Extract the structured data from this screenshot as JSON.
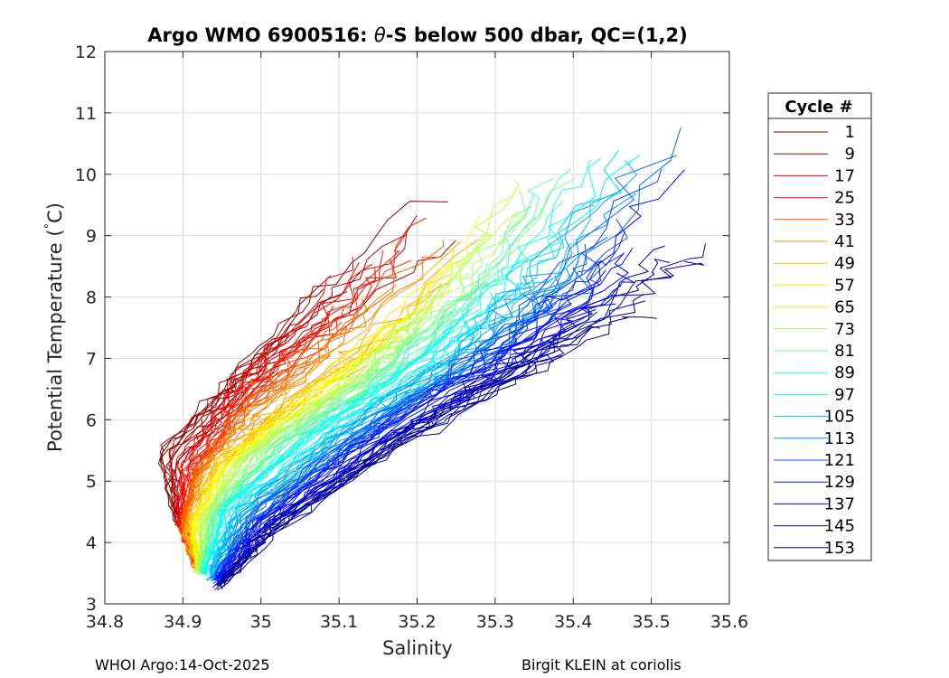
{
  "chart_data": {
    "type": "line",
    "title": {
      "prefix": "Argo WMO 6900516: ",
      "symbol": "θ",
      "suffix": "-S below 500 dbar,  QC=(1,2)"
    },
    "xlabel": "Salinity",
    "ylabel": {
      "text": "Potential Temperature (",
      "degree": "°",
      "unit": "C)"
    },
    "xlim": [
      34.8,
      35.6
    ],
    "ylim": [
      3,
      12
    ],
    "xticks": [
      "34.8",
      "34.9",
      "35",
      "35.1",
      "35.2",
      "35.3",
      "35.4",
      "35.5",
      "35.6"
    ],
    "yticks": [
      "3",
      "4",
      "5",
      "6",
      "7",
      "8",
      "9",
      "10",
      "11",
      "12"
    ],
    "grid": true,
    "legend": {
      "title": "Cycle #",
      "position": "right",
      "entries": [
        "1",
        "9",
        "17",
        "25",
        "33",
        "41",
        "49",
        "57",
        "65",
        "73",
        "81",
        "89",
        "97",
        "105",
        "113",
        "121",
        "129",
        "137",
        "145",
        "153"
      ]
    },
    "series_description": "approximately 153 profile lines colored by cycle number (jet-style palette from dark red at cycle 1 to dark blue at cycle 153), each running from the cold fresh end near S=34.9, theta=3.4 C to the warm saline end",
    "series_envelope_by_cycle": [
      {
        "cycle": 1,
        "points": [
          [
            34.92,
            3.6
          ],
          [
            34.89,
            4.5
          ],
          [
            34.87,
            5.5
          ],
          [
            34.96,
            6.6
          ],
          [
            35.07,
            8.0
          ],
          [
            35.26,
            9.8
          ]
        ]
      },
      {
        "cycle": 20,
        "points": [
          [
            34.92,
            3.6
          ],
          [
            34.9,
            4.3
          ],
          [
            34.91,
            5.2
          ],
          [
            34.98,
            6.5
          ],
          [
            35.1,
            7.8
          ],
          [
            35.2,
            9.3
          ]
        ]
      },
      {
        "cycle": 45,
        "points": [
          [
            34.92,
            3.6
          ],
          [
            34.9,
            4.2
          ],
          [
            34.93,
            5.2
          ],
          [
            35.0,
            6.0
          ],
          [
            35.12,
            7.2
          ],
          [
            35.27,
            8.9
          ]
        ]
      },
      {
        "cycle": 70,
        "points": [
          [
            34.92,
            3.5
          ],
          [
            34.93,
            4.4
          ],
          [
            34.98,
            5.4
          ],
          [
            35.12,
            6.6
          ],
          [
            35.26,
            8.3
          ],
          [
            35.36,
            10.2
          ]
        ]
      },
      {
        "cycle": 95,
        "points": [
          [
            34.93,
            3.5
          ],
          [
            34.96,
            4.6
          ],
          [
            35.08,
            5.8
          ],
          [
            35.22,
            7.0
          ],
          [
            35.34,
            8.5
          ],
          [
            35.46,
            10.4
          ]
        ]
      },
      {
        "cycle": 120,
        "points": [
          [
            34.94,
            3.4
          ],
          [
            34.99,
            4.4
          ],
          [
            35.12,
            5.7
          ],
          [
            35.28,
            7.0
          ],
          [
            35.42,
            8.6
          ],
          [
            35.55,
            11.2
          ]
        ]
      },
      {
        "cycle": 153,
        "points": [
          [
            34.95,
            3.3
          ],
          [
            35.02,
            4.2
          ],
          [
            35.18,
            5.6
          ],
          [
            35.34,
            6.8
          ],
          [
            35.48,
            7.8
          ],
          [
            35.54,
            8.0
          ]
        ]
      }
    ]
  },
  "footer": {
    "left": "WHOI Argo:14-Oct-2025",
    "right": "Birgit KLEIN at coriolis"
  }
}
